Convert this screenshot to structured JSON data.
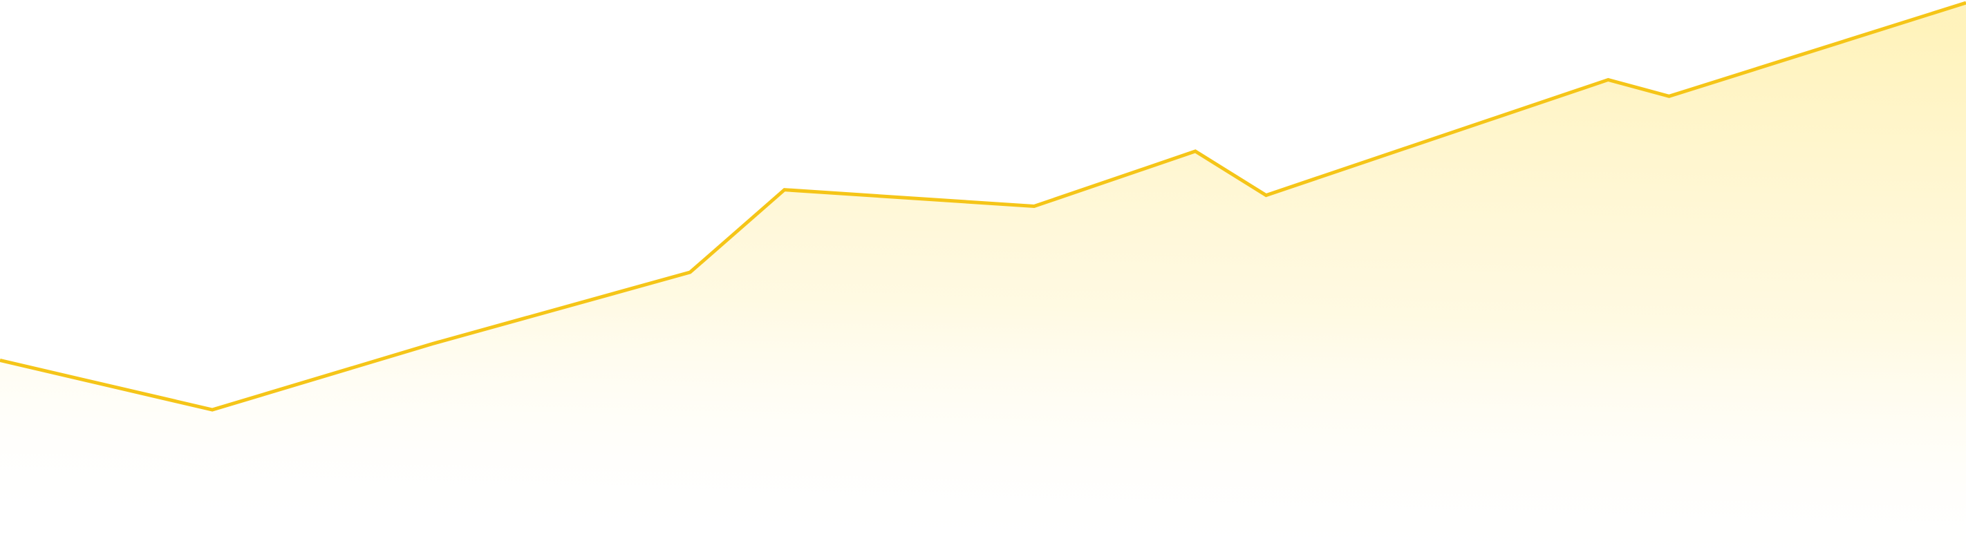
{
  "chart_data": {
    "type": "area",
    "title": "",
    "xlabel": "",
    "ylabel": "",
    "grid": false,
    "legend": "none",
    "x": [
      0,
      1,
      2,
      3,
      4,
      5,
      6,
      7,
      8,
      9,
      10,
      11,
      12,
      13
    ],
    "series": [
      {
        "values": [
          0.35,
          0.26,
          0.38,
          0.51,
          0.64,
          0.66,
          0.63,
          0.73,
          0.65,
          0.73,
          0.77,
          0.78,
          0.76,
          1.0
        ]
      }
    ],
    "ylim": [
      0,
      1
    ],
    "colors": {
      "line": "#F5C518",
      "fill_top": "#FFF2B8",
      "fill_bottom": "#FFFFFF"
    }
  }
}
